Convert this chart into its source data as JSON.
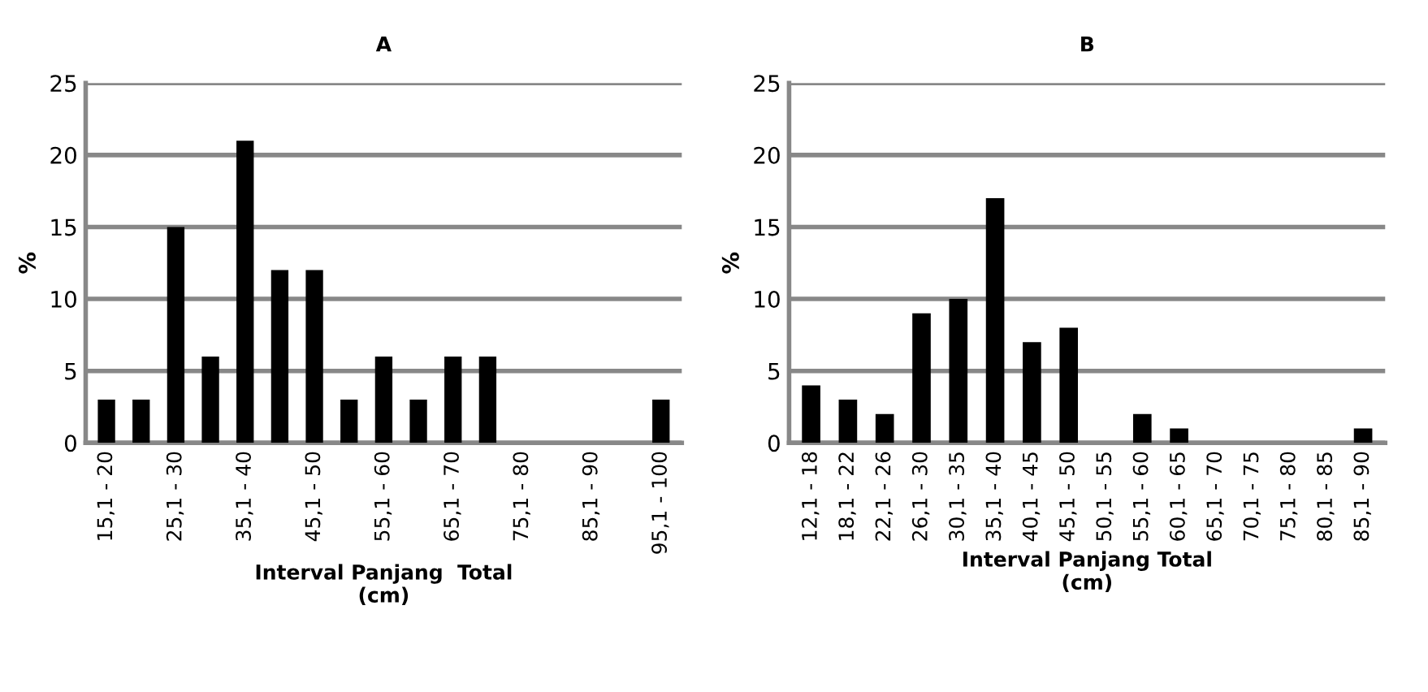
{
  "chart_data": [
    {
      "type": "bar",
      "title": "A",
      "ylabel": "%",
      "xlabel": "Interval Panjang  Total\n(cm)",
      "color": "#000000",
      "categories": [
        "15,1 - 20",
        null,
        "25,1 - 30",
        null,
        "35,1 - 40",
        null,
        "45,1 - 50",
        null,
        "55,1 - 60",
        null,
        "65,1 - 70",
        null,
        "75,1 - 80",
        null,
        "85,1 - 90",
        null,
        "95,1 - 100"
      ],
      "values": [
        3,
        3,
        15,
        6,
        21,
        12,
        12,
        3,
        6,
        3,
        6,
        6,
        0,
        0,
        0,
        0,
        3
      ],
      "ylim": [
        0,
        25
      ],
      "yticks": [
        0,
        5,
        10,
        15,
        20,
        25
      ],
      "grid": "y"
    },
    {
      "type": "bar",
      "title": "B",
      "ylabel": "%",
      "xlabel": "Interval Panjang Total\n(cm)",
      "color": "#000000",
      "categories": [
        "12,1 - 18",
        "18,1 - 22",
        "22,1 - 26",
        "26,1 - 30",
        "30,1 - 35",
        "35,1 - 40",
        "40,1 - 45",
        "45,1 - 50",
        "50,1 - 55",
        "55,1 - 60",
        "60,1 - 65",
        "65,1 - 70",
        "70,1 - 75",
        "75,1 - 80",
        "80,1 - 85",
        "85,1 - 90"
      ],
      "values": [
        4,
        3,
        2,
        9,
        10,
        17,
        7,
        8,
        0,
        2,
        1,
        0,
        0,
        0,
        0,
        1
      ],
      "ylim": [
        0,
        25
      ],
      "yticks": [
        0,
        5,
        10,
        15,
        20,
        25
      ],
      "grid": "y"
    }
  ]
}
